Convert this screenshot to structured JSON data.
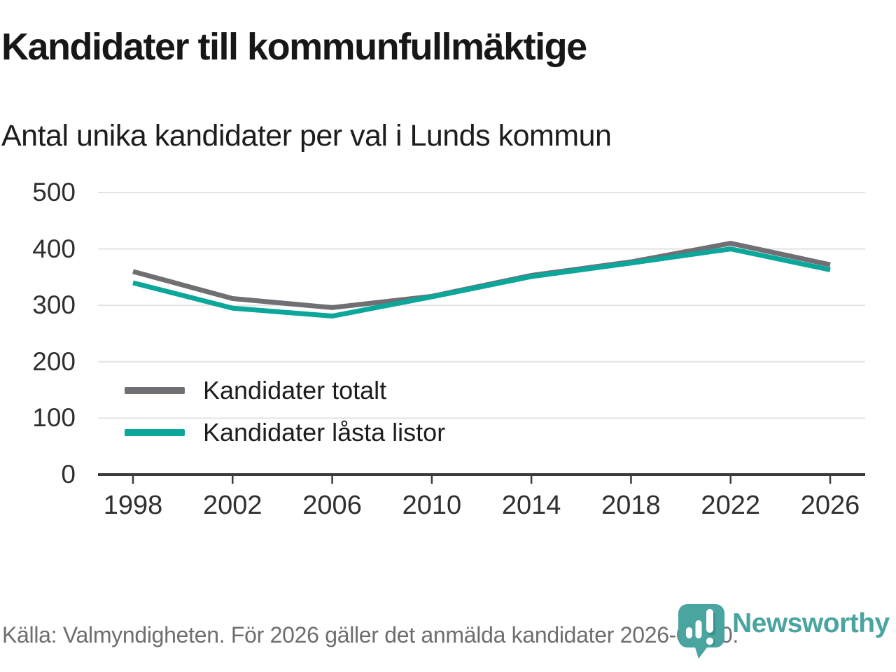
{
  "header": {
    "title": "Kandidater till kommunfullmäktige",
    "subtitle": "Antal unika kandidater per val i Lunds kommun"
  },
  "chart_data": {
    "type": "line",
    "title": "Kandidater till kommunfullmäktige",
    "subtitle": "Antal unika kandidater per val i Lunds kommun",
    "categories": [
      "1998",
      "2002",
      "2006",
      "2010",
      "2014",
      "2018",
      "2022",
      "2026"
    ],
    "series": [
      {
        "name": "Kandidater totalt",
        "color": "#6f6f74",
        "values": [
          360,
          312,
          296,
          316,
          353,
          377,
          410,
          372
        ]
      },
      {
        "name": "Kandidater låsta listor",
        "color": "#0ca79b",
        "values": [
          340,
          295,
          281,
          315,
          351,
          375,
          400,
          363
        ]
      }
    ],
    "ylim": [
      0,
      500
    ],
    "yticks": [
      0,
      100,
      200,
      300,
      400,
      500
    ],
    "grid": "horizontal-gridlines-only",
    "legend_position": "inside-left-middle",
    "xlabel": "",
    "ylabel": ""
  },
  "footer": {
    "source": "Källa: Valmyndigheten. För 2026 gäller det anmälda kandidater 2026-04-10.",
    "brand": "Newsworthy"
  },
  "colors": {
    "series_total_gray": "#6f6f74",
    "series_locked_teal": "#0ca79b",
    "brand_teal": "#4aa4a0",
    "gridline": "#e3e3e3",
    "axis": "#3b3b3b",
    "title_text": "#171717",
    "axis_text": "#2f2f2f",
    "source_text": "#6e6e6e",
    "background": "#ffffff"
  }
}
